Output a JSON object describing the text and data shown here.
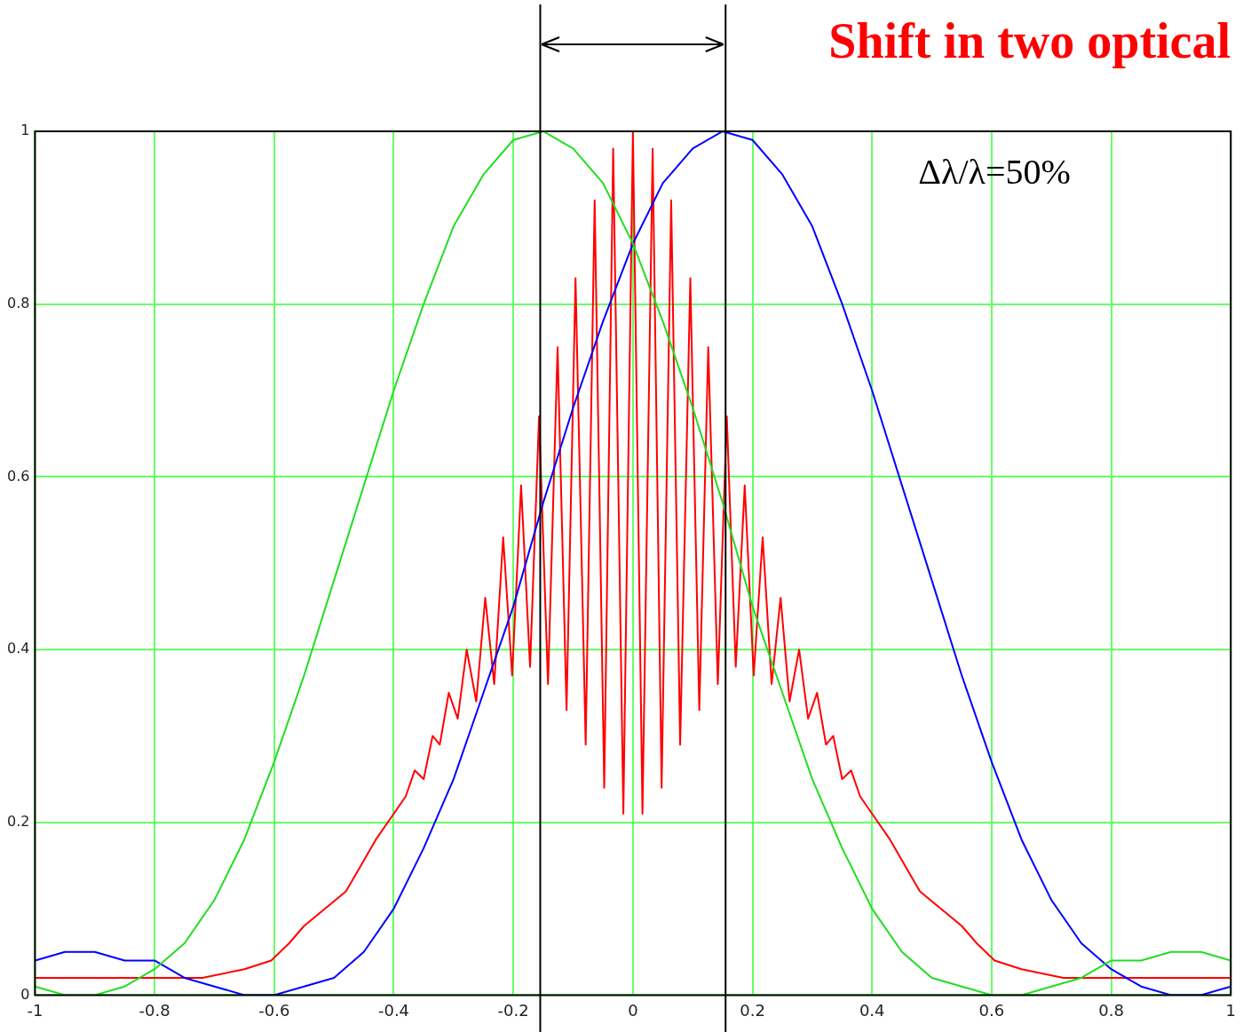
{
  "chart_data": {
    "type": "line",
    "title": "Shift in two optical",
    "annotations": [
      "Δλ/λ=50%"
    ],
    "xlim": [
      -1,
      1
    ],
    "xticks": [
      -1,
      -0.8,
      -0.6,
      -0.4,
      -0.2,
      0,
      0.2,
      0.4,
      0.6,
      0.8,
      1
    ],
    "ylim": [
      0,
      1
    ],
    "yticks": [
      0,
      0.2,
      0.4,
      0.6,
      0.8,
      1
    ],
    "grid": true,
    "legend": false,
    "marker": "none",
    "line_style": "solid",
    "ref_lines": [
      {
        "axis": "x",
        "value": -0.155,
        "color": "#000000"
      },
      {
        "axis": "x",
        "value": 0.155,
        "color": "#000000"
      }
    ],
    "series": [
      {
        "color": "#22dd22",
        "x": [
          -1,
          -0.95,
          -0.9,
          -0.85,
          -0.8,
          -0.75,
          -0.7,
          -0.65,
          -0.6,
          -0.55,
          -0.5,
          -0.45,
          -0.4,
          -0.35,
          -0.3,
          -0.25,
          -0.2,
          -0.15,
          -0.1,
          -0.05,
          0,
          0.05,
          0.1,
          0.15,
          0.2,
          0.25,
          0.3,
          0.35,
          0.4,
          0.45,
          0.5,
          0.55,
          0.6,
          0.65,
          0.7,
          0.75,
          0.8,
          0.85,
          0.9,
          0.95,
          1
        ],
        "values": [
          0.01,
          0,
          0,
          0.01,
          0.03,
          0.06,
          0.11,
          0.18,
          0.27,
          0.37,
          0.48,
          0.59,
          0.7,
          0.8,
          0.89,
          0.95,
          0.99,
          1,
          0.98,
          0.94,
          0.87,
          0.78,
          0.68,
          0.57,
          0.45,
          0.35,
          0.25,
          0.17,
          0.1,
          0.05,
          0.02,
          0.01,
          0,
          0,
          0.01,
          0.02,
          0.04,
          0.04,
          0.05,
          0.05,
          0.04
        ]
      },
      {
        "color": "#0000ff",
        "x": [
          -1,
          -0.95,
          -0.9,
          -0.85,
          -0.8,
          -0.75,
          -0.7,
          -0.65,
          -0.6,
          -0.55,
          -0.5,
          -0.45,
          -0.4,
          -0.35,
          -0.3,
          -0.25,
          -0.2,
          -0.15,
          -0.1,
          -0.05,
          0,
          0.05,
          0.1,
          0.15,
          0.2,
          0.25,
          0.3,
          0.35,
          0.4,
          0.45,
          0.5,
          0.55,
          0.6,
          0.65,
          0.7,
          0.75,
          0.8,
          0.85,
          0.9,
          0.95,
          1
        ],
        "values": [
          0.04,
          0.05,
          0.05,
          0.04,
          0.04,
          0.02,
          0.01,
          0,
          0,
          0.01,
          0.02,
          0.05,
          0.1,
          0.17,
          0.25,
          0.35,
          0.45,
          0.57,
          0.68,
          0.78,
          0.87,
          0.94,
          0.98,
          1,
          0.99,
          0.95,
          0.89,
          0.8,
          0.7,
          0.59,
          0.48,
          0.37,
          0.27,
          0.18,
          0.11,
          0.06,
          0.03,
          0.01,
          0,
          0,
          0.01
        ]
      },
      {
        "color": "#ff0000",
        "x": [
          -1,
          -0.85,
          -0.72,
          -0.65,
          -0.605,
          -0.575,
          -0.55,
          -0.515,
          -0.48,
          -0.455,
          -0.43,
          -0.4,
          -0.38,
          -0.365,
          -0.35,
          -0.335,
          -0.323,
          -0.308,
          -0.293,
          -0.278,
          -0.262,
          -0.247,
          -0.232,
          -0.217,
          -0.202,
          -0.187,
          -0.172,
          -0.157,
          -0.142,
          -0.126,
          -0.111,
          -0.096,
          -0.079,
          -0.064,
          -0.048,
          -0.033,
          -0.016,
          0,
          0.016,
          0.033,
          0.048,
          0.064,
          0.079,
          0.096,
          0.111,
          0.126,
          0.142,
          0.157,
          0.172,
          0.187,
          0.202,
          0.217,
          0.232,
          0.247,
          0.262,
          0.278,
          0.293,
          0.308,
          0.323,
          0.335,
          0.35,
          0.365,
          0.38,
          0.4,
          0.43,
          0.455,
          0.48,
          0.515,
          0.55,
          0.575,
          0.605,
          0.65,
          0.72,
          0.85,
          1
        ],
        "values": [
          0.02,
          0.02,
          0.02,
          0.03,
          0.04,
          0.06,
          0.08,
          0.1,
          0.12,
          0.15,
          0.18,
          0.21,
          0.23,
          0.26,
          0.25,
          0.3,
          0.29,
          0.35,
          0.32,
          0.4,
          0.34,
          0.46,
          0.36,
          0.53,
          0.37,
          0.59,
          0.38,
          0.67,
          0.36,
          0.75,
          0.33,
          0.83,
          0.29,
          0.92,
          0.24,
          0.98,
          0.21,
          1,
          0.21,
          0.98,
          0.24,
          0.92,
          0.29,
          0.83,
          0.33,
          0.75,
          0.36,
          0.67,
          0.38,
          0.59,
          0.37,
          0.53,
          0.36,
          0.46,
          0.34,
          0.4,
          0.32,
          0.35,
          0.29,
          0.3,
          0.25,
          0.26,
          0.23,
          0.21,
          0.18,
          0.15,
          0.12,
          0.1,
          0.08,
          0.06,
          0.04,
          0.03,
          0.02,
          0.02,
          0.02
        ]
      }
    ]
  }
}
